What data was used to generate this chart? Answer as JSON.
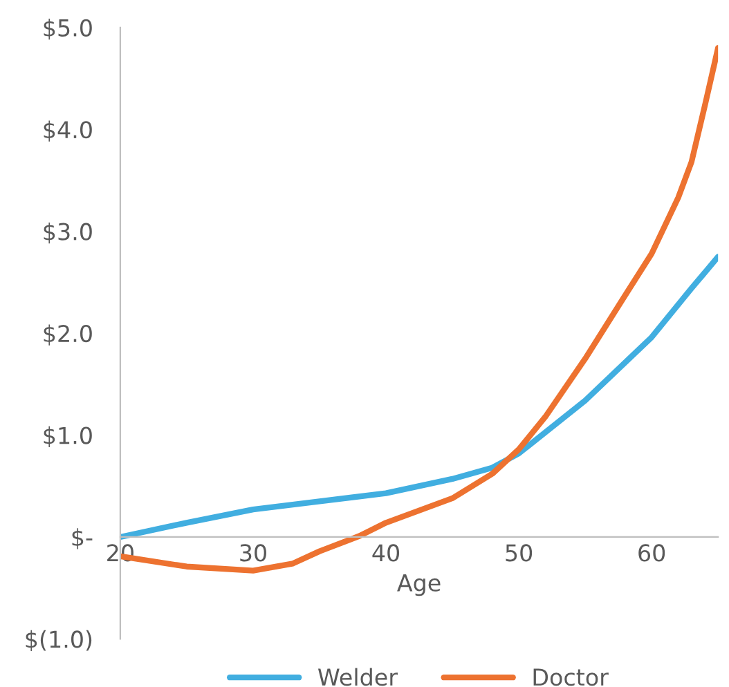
{
  "chart_data": {
    "type": "line",
    "xlabel": "Age",
    "xlim": [
      20,
      65
    ],
    "xticks": [
      20,
      30,
      40,
      50,
      60
    ],
    "ylim": [
      -1,
      5
    ],
    "yticks": [
      {
        "value": -1,
        "label": "$(1.0)"
      },
      {
        "value": 0,
        "label": "$-"
      },
      {
        "value": 1,
        "label": "$1.0"
      },
      {
        "value": 2,
        "label": "$2.0"
      },
      {
        "value": 3,
        "label": "$3.0"
      },
      {
        "value": 4,
        "label": "$4.0"
      },
      {
        "value": 5,
        "label": "$5.0"
      }
    ],
    "grid": false,
    "legend": "bottom",
    "marker": "none",
    "line_style": "solid",
    "series": [
      {
        "name": "Welder",
        "color": "#41aee0",
        "x": [
          20,
          25,
          30,
          35,
          40,
          45,
          48,
          50,
          55,
          60,
          63,
          65
        ],
        "values": [
          0,
          0.14,
          0.27,
          0.35,
          0.43,
          0.57,
          0.68,
          0.82,
          1.34,
          1.96,
          2.44,
          2.75
        ]
      },
      {
        "name": "Doctor",
        "color": "#ed7230",
        "x": [
          20,
          25,
          30,
          33,
          35,
          38,
          40,
          45,
          48,
          50,
          52,
          55,
          58,
          60,
          62,
          63,
          64,
          65
        ],
        "values": [
          -0.19,
          -0.29,
          -0.33,
          -0.26,
          -0.14,
          0.01,
          0.14,
          0.38,
          0.62,
          0.86,
          1.18,
          1.75,
          2.37,
          2.78,
          3.33,
          3.68,
          4.23,
          4.8
        ]
      }
    ]
  }
}
